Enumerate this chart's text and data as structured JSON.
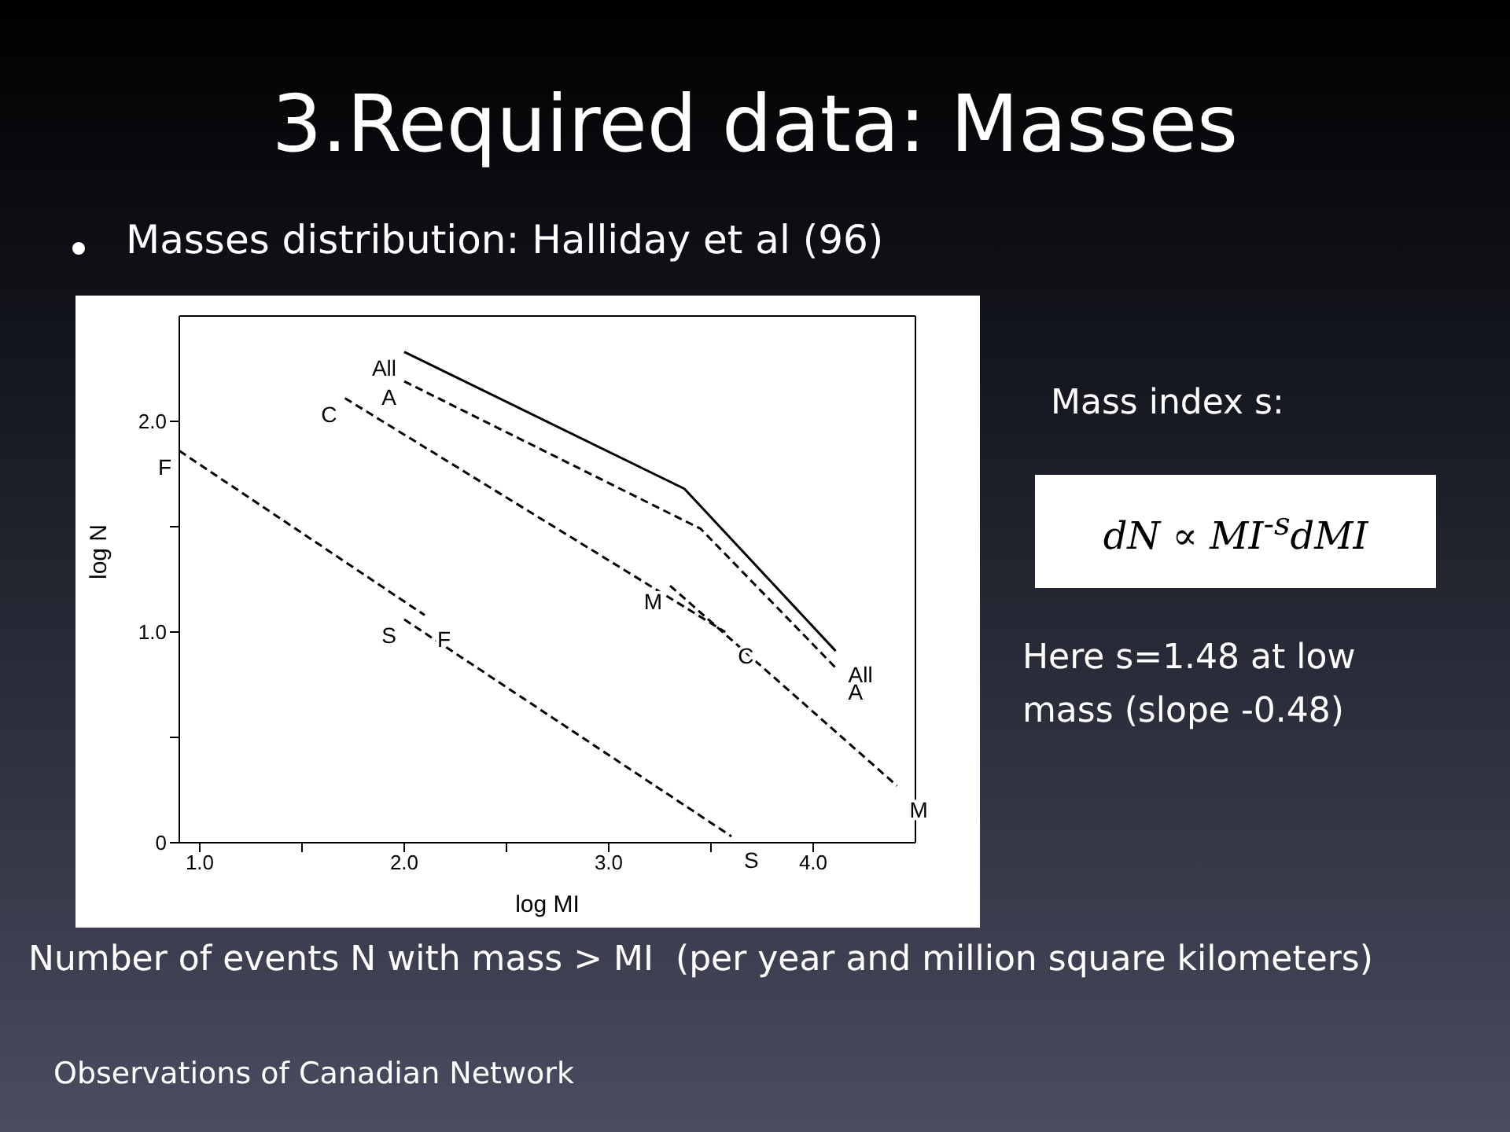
{
  "chart_data": {
    "type": "line",
    "title": "3.Required data: Masses",
    "subtitle": "Masses distribution: Halliday et al (96)",
    "xlabel": "log MI",
    "ylabel": "log N",
    "xlim": [
      0.9,
      4.5
    ],
    "ylim": [
      0,
      2.5
    ],
    "xticks": [
      {
        "value": 1,
        "label": "1.0"
      },
      {
        "value": 1.5,
        "label": null
      },
      {
        "value": 2,
        "label": "2.0"
      },
      {
        "value": 2.5,
        "label": null
      },
      {
        "value": 3,
        "label": "3.0"
      },
      {
        "value": 3.5,
        "label": null
      },
      {
        "value": 4,
        "label": "4.0"
      }
    ],
    "yticks": [
      0,
      {
        "value": 0.5,
        "label": null
      },
      {
        "value": 1,
        "label": "1.0"
      },
      {
        "value": 1.5,
        "label": null
      },
      {
        "value": 2,
        "label": "2.0"
      }
    ],
    "marker": "none",
    "series": [
      {
        "name": "All",
        "color": "#000000",
        "line_style": "solid",
        "x": [
          2.0,
          3.37,
          4.11
        ],
        "values": [
          2.33,
          1.68,
          0.91
        ]
      },
      {
        "name": "A",
        "color": "#000000",
        "line_style": "dashed",
        "x": [
          2.0,
          3.45,
          4.11
        ],
        "values": [
          2.19,
          1.49,
          0.83
        ]
      },
      {
        "name": "C",
        "color": "#000000",
        "line_style": "dashed",
        "x": [
          1.71,
          3.57
        ],
        "values": [
          2.11,
          1.0
        ]
      },
      {
        "name": "M",
        "color": "#000000",
        "line_style": "dashed",
        "x": [
          3.3,
          4.41
        ],
        "values": [
          1.22,
          0.27
        ]
      },
      {
        "name": "F",
        "color": "#000000",
        "line_style": "dashed",
        "x": [
          0.9,
          2.1
        ],
        "values": [
          1.86,
          1.08
        ]
      },
      {
        "name": "S",
        "color": "#000000",
        "line_style": "dashed",
        "x": [
          2.0,
          3.6
        ],
        "values": [
          1.06,
          0.03
        ]
      }
    ],
    "annotations": [
      "Mass index s:",
      "dN ∝ MI$^{-s}$dMI",
      "Here s=1.48 at low mass (slope -0.48)",
      "Number of events N with mass > MI  (per year and million square kilometers)",
      "Observations of Canadian Network"
    ]
  }
}
